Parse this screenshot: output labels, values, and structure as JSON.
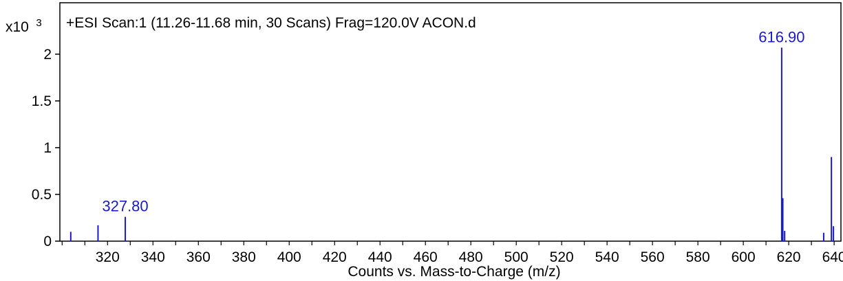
{
  "colors": {
    "peak": "#1a1acc",
    "peak_label": "#1a1acc",
    "axis": "#000000",
    "frame": "#000000"
  },
  "chart_data": {
    "type": "bar",
    "title": "+ESI Scan:1 (11.26-11.68 min, 30 Scans) Frag=120.0V ACON.d",
    "xlabel": "Counts vs. Mass-to-Charge (m/z)",
    "ylabel": "",
    "y_scale_prefix": "x10",
    "y_scale_exponent": "3",
    "xlim": [
      299,
      643
    ],
    "ylim": [
      0,
      2.55
    ],
    "x_ticks": [
      300,
      310,
      320,
      330,
      340,
      350,
      360,
      370,
      380,
      390,
      400,
      410,
      420,
      430,
      440,
      450,
      460,
      470,
      480,
      490,
      500,
      510,
      520,
      530,
      540,
      550,
      560,
      570,
      580,
      590,
      600,
      610,
      620,
      630,
      640
    ],
    "x_tick_labels": [
      "320",
      "340",
      "360",
      "380",
      "400",
      "420",
      "440",
      "460",
      "480",
      "500",
      "520",
      "540",
      "560",
      "580",
      "600",
      "620",
      "640"
    ],
    "x_tick_label_values": [
      320,
      340,
      360,
      380,
      400,
      420,
      440,
      460,
      480,
      500,
      520,
      540,
      560,
      580,
      600,
      620,
      640
    ],
    "y_ticks": [
      0,
      0.5,
      1,
      1.5,
      2
    ],
    "y_tick_labels": [
      "0",
      "0.5",
      "1",
      "1.5",
      "2"
    ],
    "peaks": [
      {
        "mz": 303.8,
        "intensity": 0.1
      },
      {
        "mz": 315.8,
        "intensity": 0.17
      },
      {
        "mz": 327.8,
        "intensity": 0.26,
        "label": "327.80"
      },
      {
        "mz": 616.9,
        "intensity": 2.07,
        "label": "616.90"
      },
      {
        "mz": 617.4,
        "intensity": 0.46
      },
      {
        "mz": 618.2,
        "intensity": 0.11
      },
      {
        "mz": 635.4,
        "intensity": 0.09
      },
      {
        "mz": 638.8,
        "intensity": 0.9
      },
      {
        "mz": 639.7,
        "intensity": 0.16
      }
    ],
    "grid": false,
    "legend": "none"
  }
}
